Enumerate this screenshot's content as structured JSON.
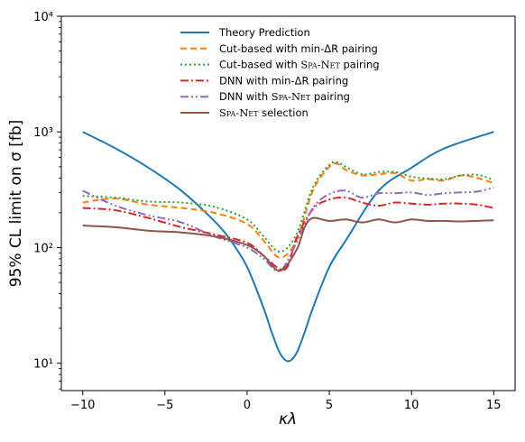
{
  "chart_data": {
    "type": "line",
    "xlabel": "κλ",
    "ylabel": "95% CL limit on σ [fb]",
    "xlim": [
      -11.3,
      16.3
    ],
    "ylim": [
      5.8,
      10000
    ],
    "yscale": "log",
    "xticks": [
      -10,
      -5,
      0,
      5,
      10,
      15
    ],
    "xtick_labels": [
      "−10",
      "−5",
      "0",
      "5",
      "10",
      "15"
    ],
    "yticks": [
      10,
      100,
      1000,
      10000
    ],
    "ytick_labels": [
      "10¹",
      "10²",
      "10³",
      "10⁴"
    ],
    "legend_position": "top-center",
    "series": [
      {
        "name": "Theory Prediction",
        "color": "#1f77b4",
        "dash": "solid",
        "x": [
          -10,
          -8,
          -6,
          -4,
          -2,
          -1,
          0,
          1,
          1.5,
          2,
          2.5,
          3,
          3.5,
          4,
          5,
          6,
          8,
          10,
          12,
          15
        ],
        "y": [
          1000,
          720,
          490,
          310,
          170,
          115,
          68,
          30,
          18.5,
          12.2,
          10.4,
          12.2,
          18.5,
          30,
          68,
          115,
          310,
          490,
          720,
          1000
        ]
      },
      {
        "name": "Cut-based with min-ΔR pairing",
        "color": "#ff7f0e",
        "dash": "7,4",
        "x": [
          -10,
          -8,
          -6,
          -4,
          -2,
          0,
          1,
          2,
          3,
          4,
          5,
          5.5,
          6,
          7,
          8,
          9,
          10,
          11,
          12,
          13,
          14,
          15
        ],
        "y": [
          245,
          265,
          235,
          220,
          200,
          160,
          115,
          82,
          115,
          310,
          500,
          530,
          470,
          420,
          430,
          440,
          380,
          390,
          380,
          420,
          400,
          360
        ]
      },
      {
        "name": "Cut-based with Spa-Net pairing",
        "color": "#2ca02c",
        "dash": "2,3",
        "x": [
          -10,
          -8,
          -6,
          -4,
          -2,
          0,
          1,
          2,
          3,
          4,
          5,
          5.5,
          6,
          7,
          8,
          9,
          10,
          11,
          12,
          13,
          14,
          15
        ],
        "y": [
          280,
          270,
          250,
          245,
          225,
          175,
          125,
          92,
          130,
          330,
          520,
          545,
          500,
          430,
          450,
          450,
          410,
          395,
          390,
          420,
          425,
          385
        ]
      },
      {
        "name": "DNN with min-ΔR pairing",
        "color": "#d62728",
        "dash": "9,3,2,3",
        "x": [
          -10,
          -8,
          -6,
          -4,
          -2,
          0,
          1,
          2,
          2.5,
          3,
          4,
          5,
          6,
          7,
          8,
          9,
          10,
          11,
          12,
          13,
          14,
          15
        ],
        "y": [
          220,
          210,
          180,
          150,
          130,
          110,
          85,
          65,
          70,
          120,
          215,
          260,
          270,
          245,
          230,
          245,
          240,
          235,
          240,
          240,
          235,
          220
        ]
      },
      {
        "name": "DNN with Spa-Net pairing",
        "color": "#9467bd",
        "dash": "9,3,2,3,2,3",
        "x": [
          -10,
          -8,
          -6,
          -4,
          -2,
          0,
          1,
          2,
          3,
          4,
          5,
          6,
          7,
          8,
          9,
          10,
          11,
          12,
          13,
          14,
          15
        ],
        "y": [
          310,
          230,
          190,
          165,
          125,
          100,
          80,
          63,
          110,
          220,
          290,
          310,
          270,
          295,
          295,
          300,
          285,
          295,
          300,
          305,
          330
        ]
      },
      {
        "name": "Spa-Net selection",
        "color": "#8c564b",
        "dash": "solid",
        "x": [
          -10,
          -8,
          -6,
          -4,
          -2,
          0,
          1,
          2,
          3,
          3.5,
          4,
          5,
          6,
          7,
          8,
          9,
          10,
          11,
          12,
          13,
          14,
          15
        ],
        "y": [
          155,
          150,
          140,
          135,
          125,
          105,
          85,
          63,
          95,
          150,
          180,
          170,
          175,
          165,
          175,
          165,
          175,
          170,
          170,
          168,
          170,
          172
        ]
      }
    ]
  },
  "legend": {
    "entries": [
      {
        "main": "Theory Prediction",
        "sc": "",
        "tail": ""
      },
      {
        "main": "Cut-based with min-ΔR pairing",
        "sc": "",
        "tail": ""
      },
      {
        "main": "Cut-based with ",
        "sc": "Spa-Net",
        "tail": " pairing"
      },
      {
        "main": "DNN with min-ΔR pairing",
        "sc": "",
        "tail": ""
      },
      {
        "main": "DNN with ",
        "sc": "Spa-Net",
        "tail": " pairing"
      },
      {
        "main": "",
        "sc": "Spa-Net",
        "tail": " selection"
      }
    ]
  }
}
